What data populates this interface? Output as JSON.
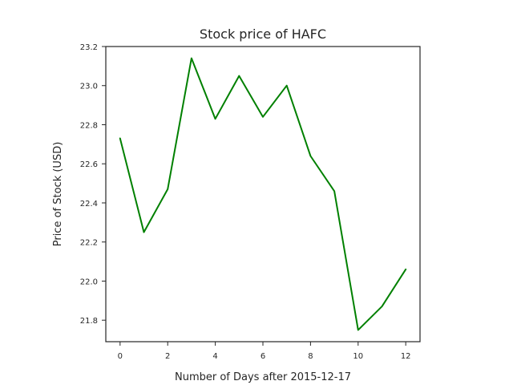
{
  "chart_data": {
    "type": "line",
    "title": "Stock price of HAFC",
    "xlabel": "Number of Days after 2015-12-17",
    "ylabel": "Price of Stock (USD)",
    "x": [
      0,
      1,
      2,
      3,
      4,
      5,
      6,
      7,
      8,
      9,
      10,
      11,
      12
    ],
    "series": [
      {
        "values": [
          22.73,
          22.25,
          22.47,
          23.14,
          22.83,
          23.05,
          22.84,
          23.0,
          22.64,
          22.46,
          21.75,
          21.87,
          22.06
        ]
      }
    ],
    "xlim": [
      -0.6,
      12.6
    ],
    "ylim": [
      21.69,
      23.2
    ],
    "xticks": [
      0,
      2,
      4,
      6,
      8,
      10,
      12
    ],
    "yticks": [
      21.8,
      22.0,
      22.2,
      22.4,
      22.6,
      22.8,
      23.0,
      23.2
    ],
    "ytick_labels": [
      "21.8",
      "22.0",
      "22.2",
      "22.4",
      "22.6",
      "22.8",
      "23.0",
      "23.2"
    ],
    "grid": false,
    "line_color": "#008000"
  }
}
